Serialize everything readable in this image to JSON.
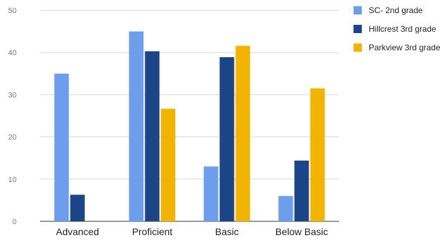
{
  "chart_data": {
    "type": "bar",
    "categories": [
      "Advanced",
      "Proficient",
      "Basic",
      "Below Basic"
    ],
    "series": [
      {
        "name": "SC- 2nd grade",
        "color": "#6d9eeb",
        "values": [
          35,
          45,
          13,
          6
        ]
      },
      {
        "name": "Hillcrest 3rd grade",
        "color": "#1c4587",
        "values": [
          6.3,
          40.3,
          38.9,
          14.4
        ]
      },
      {
        "name": "Parkview 3rd grade",
        "color": "#f1b400",
        "values": [
          0,
          26.7,
          41.6,
          31.5
        ]
      }
    ],
    "ylim": [
      0,
      50
    ],
    "yticks": [
      0,
      10,
      20,
      30,
      40,
      50
    ],
    "grid": true,
    "legend_position": "right"
  }
}
